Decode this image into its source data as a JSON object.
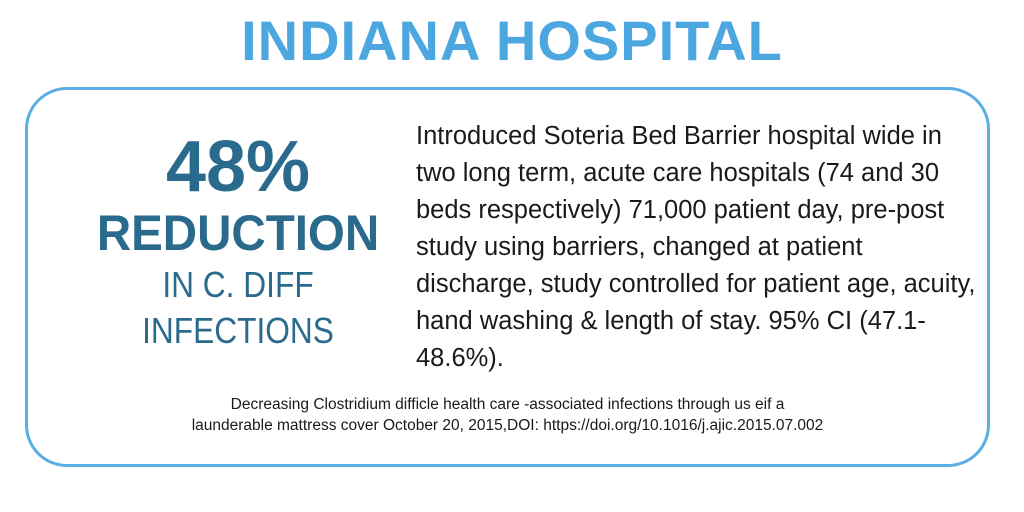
{
  "colors": {
    "title": "#4ca6e0",
    "border": "#5aaee3",
    "stat": "#2a6a8c",
    "body_text": "#1a1a1a"
  },
  "title": "INDIANA HOSPITAL",
  "stat": {
    "percent": "48%",
    "headline": "REDUCTION",
    "line1": "IN C. DIFF",
    "line2": "INFECTIONS"
  },
  "description": "Introduced Soteria Bed Barrier hospital wide in two long term, acute care hospitals (74 and 30 beds respectively) 71,000 patient day, pre-post study using barriers, changed at patient discharge, study controlled for patient age, acuity, hand washing & length of stay. 95% CI (47.1-48.6%).",
  "citation": {
    "line1": "Decreasing Clostridium difficle health care -associated infections through us eif a",
    "line2": "launderable mattress cover October 20, 2015,DOI: https://doi.org/10.1016/j.ajic.2015.07.002"
  }
}
